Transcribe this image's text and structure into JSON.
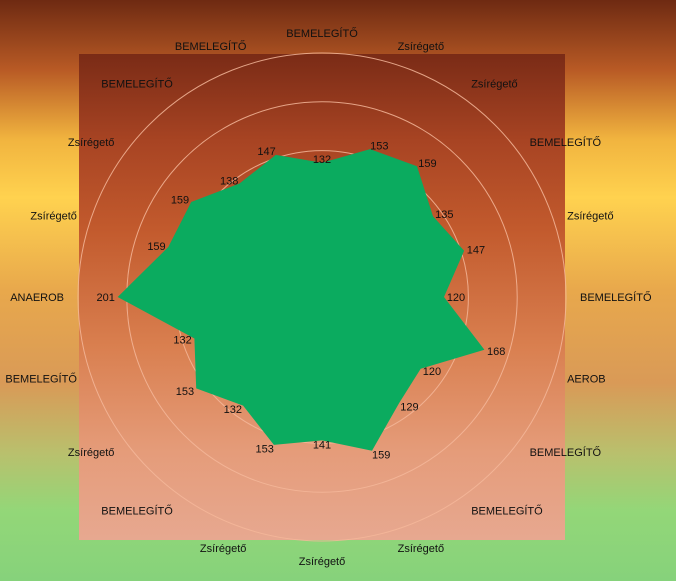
{
  "chart_data": {
    "type": "radar",
    "title": "",
    "categories": [
      "BEMELEGÍTŐ",
      "Zsírégető",
      "Zsírégető",
      "BEMELEGÍTŐ",
      "Zsírégető",
      "BEMELEGÍTŐ",
      "AEROB",
      "BEMELEGÍTŐ",
      "BEMELEGÍTŐ",
      "Zsírégető",
      "Zsírégető",
      "Zsírégető",
      "BEMELEGÍTŐ",
      "Zsírégető",
      "BEMELEGÍTŐ",
      "ANAEROB",
      "Zsírégető",
      "Zsírégető",
      "BEMELEGÍTŐ",
      "BEMELEGÍTŐ"
    ],
    "series": [
      {
        "values": [
          132,
          153,
          159,
          135,
          147,
          120,
          168,
          120,
          129,
          159,
          141,
          153,
          132,
          153,
          132,
          201,
          159,
          159,
          138,
          147
        ],
        "color": "#0bab5f"
      }
    ],
    "rlim": [
      0,
      240
    ],
    "grid": true,
    "gridlines": 5,
    "data_labels": true,
    "legend": "none"
  }
}
